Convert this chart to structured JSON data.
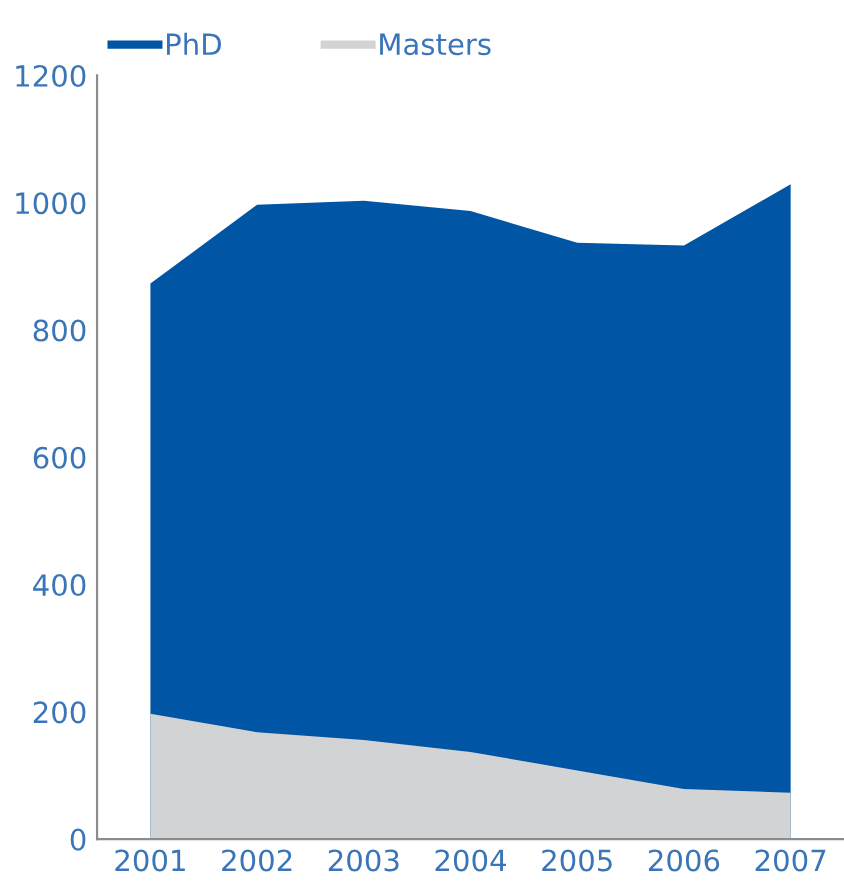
{
  "chart_data": {
    "type": "area",
    "categories": [
      "2001",
      "2002",
      "2003",
      "2004",
      "2005",
      "2006",
      "2007"
    ],
    "series": [
      {
        "name": "PhD",
        "color": "#0055a4",
        "values": [
          873,
          997,
          1003,
          987,
          937,
          933,
          1029
        ]
      },
      {
        "name": "Masters",
        "color": "#d1d3d4",
        "values": [
          197,
          168,
          156,
          137,
          108,
          79,
          73
        ]
      }
    ],
    "ylim": [
      0,
      1200
    ],
    "yticks": [
      0,
      200,
      400,
      600,
      800,
      1000,
      1200
    ],
    "grid": false,
    "legend": "top left"
  }
}
